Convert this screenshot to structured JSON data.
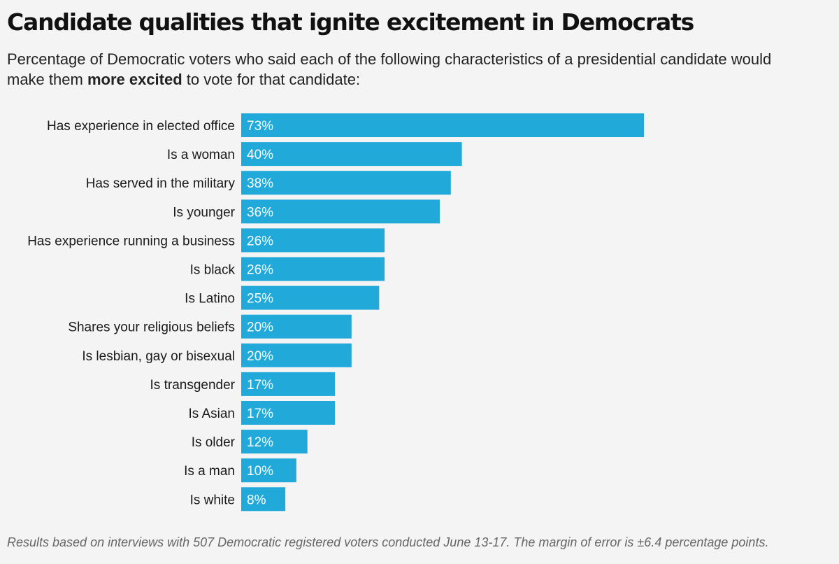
{
  "header": {
    "title": "Candidate qualities that ignite excitement in Democrats",
    "subtitle_before": "Percentage of Democratic voters who said each of the following characteristics of a presidential candidate would make them ",
    "subtitle_bold": "more excited",
    "subtitle_after": " to vote for that candidate:"
  },
  "footnote": "Results based on interviews with 507 Democratic registered voters conducted June 13-17. The margin of error is ±6.4 percentage points.",
  "colors": {
    "bar": "#21a9d9",
    "bar_label": "#ffffff",
    "category_label": "#1a1a1a",
    "background": "#f4f4f4"
  },
  "chart_data": {
    "type": "bar",
    "orientation": "horizontal",
    "categories": [
      "Has experience in elected office",
      "Is a woman",
      "Has served in the military",
      "Is younger",
      "Has experience running a business",
      "Is black",
      "Is Latino",
      "Shares your religious beliefs",
      "Is lesbian, gay or bisexual",
      "Is transgender",
      "Is Asian",
      "Is older",
      "Is a man",
      "Is white"
    ],
    "values": [
      73,
      40,
      38,
      36,
      26,
      26,
      25,
      20,
      20,
      17,
      17,
      12,
      10,
      8
    ],
    "value_suffix": "%",
    "title": "Candidate qualities that ignite excitement in Democrats",
    "xlabel": "",
    "ylabel": "",
    "xlim": [
      0,
      100
    ],
    "grid": false,
    "legend": "none"
  }
}
